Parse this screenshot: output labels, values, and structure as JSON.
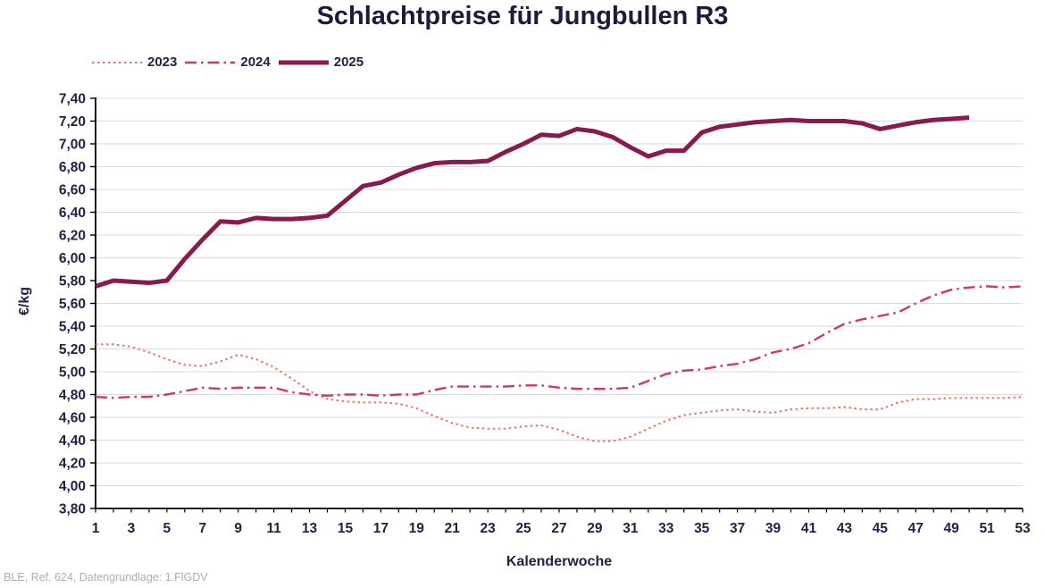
{
  "footer": "BLE, Ref. 624, Datengrundlage: 1.FlGDV",
  "colors": {
    "title_text": "#1c1c3a",
    "tick_text": "#20204a",
    "grid": "#d9d9d9",
    "axis": "#000000",
    "footer_text": "#a7aebb",
    "series_2023": "#f0735c",
    "series_2024": "#d13569",
    "series_2025": "#871a4f"
  },
  "chart_data": {
    "type": "line",
    "title": "Schlachtpreise für Jungbullen R3",
    "xlabel": "Kalenderwoche",
    "ylabel": "€/kg",
    "grid": "horizontal-only",
    "legend_position": "top-left",
    "xlim": [
      1,
      53
    ],
    "ylim": [
      3.8,
      7.4
    ],
    "y_tick_step": 0.2,
    "y_tick_labels": [
      "3,80",
      "4,00",
      "4,20",
      "4,40",
      "4,60",
      "4,80",
      "5,00",
      "5,20",
      "5,40",
      "5,60",
      "5,80",
      "6,00",
      "6,20",
      "6,40",
      "6,60",
      "6,80",
      "7,00",
      "7,20",
      "7,40"
    ],
    "x_tick_labels": [
      "1",
      "3",
      "5",
      "7",
      "9",
      "11",
      "13",
      "15",
      "17",
      "19",
      "21",
      "23",
      "25",
      "27",
      "29",
      "31",
      "33",
      "35",
      "37",
      "39",
      "41",
      "43",
      "45",
      "47",
      "49",
      "51",
      "53"
    ],
    "x_minor_tick_every": 1,
    "series": [
      {
        "name": "2023",
        "color": "#f0735c",
        "style": "dotted",
        "width": 2,
        "x_start": 1,
        "values": [
          5.24,
          5.24,
          5.22,
          5.17,
          5.11,
          5.06,
          5.05,
          5.09,
          5.15,
          5.11,
          5.04,
          4.94,
          4.83,
          4.76,
          4.74,
          4.73,
          4.73,
          4.72,
          4.68,
          4.61,
          4.55,
          4.51,
          4.5,
          4.5,
          4.52,
          4.53,
          4.49,
          4.43,
          4.39,
          4.39,
          4.43,
          4.5,
          4.57,
          4.62,
          4.64,
          4.66,
          4.67,
          4.65,
          4.64,
          4.67,
          4.68,
          4.68,
          4.69,
          4.67,
          4.67,
          4.73,
          4.76,
          4.76,
          4.77,
          4.77,
          4.77,
          4.77,
          4.78
        ]
      },
      {
        "name": "2024",
        "color": "#d13569",
        "style": "dashdot",
        "width": 2.4,
        "x_start": 1,
        "values": [
          4.78,
          4.77,
          4.78,
          4.78,
          4.8,
          4.83,
          4.86,
          4.85,
          4.86,
          4.86,
          4.86,
          4.82,
          4.8,
          4.79,
          4.8,
          4.8,
          4.79,
          4.8,
          4.8,
          4.84,
          4.87,
          4.87,
          4.87,
          4.87,
          4.88,
          4.88,
          4.86,
          4.85,
          4.85,
          4.85,
          4.86,
          4.92,
          4.98,
          5.01,
          5.02,
          5.05,
          5.07,
          5.11,
          5.17,
          5.2,
          5.25,
          5.34,
          5.42,
          5.46,
          5.49,
          5.52,
          5.6,
          5.67,
          5.72,
          5.74,
          5.75,
          5.74,
          5.75
        ]
      },
      {
        "name": "2025",
        "color": "#871a4f",
        "style": "solid",
        "width": 5,
        "x_start": 1,
        "values": [
          5.75,
          5.8,
          5.79,
          5.78,
          5.8,
          5.99,
          6.16,
          6.32,
          6.31,
          6.35,
          6.34,
          6.34,
          6.35,
          6.37,
          6.5,
          6.63,
          6.66,
          6.73,
          6.79,
          6.83,
          6.84,
          6.84,
          6.85,
          6.93,
          7.0,
          7.08,
          7.07,
          7.13,
          7.11,
          7.06,
          6.97,
          6.89,
          6.94,
          6.94,
          7.1,
          7.15,
          7.17,
          7.19,
          7.2,
          7.21,
          7.2,
          7.2,
          7.2,
          7.18,
          7.13,
          7.16,
          7.19,
          7.21,
          7.22,
          7.23
        ]
      }
    ]
  }
}
